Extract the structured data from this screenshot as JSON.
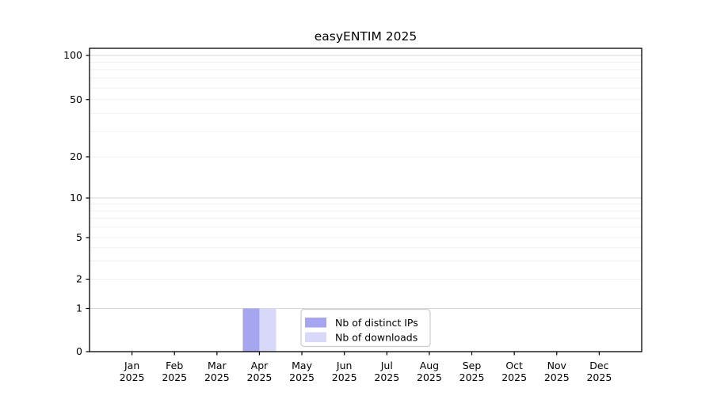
{
  "chart_data": {
    "type": "bar",
    "title": "easyENTIM 2025",
    "x_categories": [
      "Jan",
      "Feb",
      "Mar",
      "Apr",
      "May",
      "Jun",
      "Jul",
      "Aug",
      "Sep",
      "Oct",
      "Nov",
      "Dec"
    ],
    "x_year_label": "2025",
    "y_ticks": [
      0,
      1,
      2,
      5,
      10,
      20,
      50,
      100
    ],
    "y_scale": "symlog",
    "ylim": [
      0,
      115
    ],
    "grid": "on",
    "series": [
      {
        "name": "Nb of distinct IPs",
        "color": "#a5a5f0",
        "values": [
          0,
          0,
          0,
          1,
          0,
          0,
          0,
          0,
          0,
          0,
          0,
          0
        ]
      },
      {
        "name": "Nb of downloads",
        "color": "#d8d8f8",
        "values": [
          0,
          0,
          0,
          1,
          0,
          0,
          0,
          0,
          0,
          0,
          0,
          0
        ]
      }
    ],
    "legend": {
      "position": "lower center",
      "labels": [
        "Nb of distinct IPs",
        "Nb of downloads"
      ]
    }
  },
  "colors": {
    "background": "#ffffff",
    "spine": "#000000",
    "grid_major": "#d7d7d7",
    "grid_minor": "#f0f0f0",
    "legend_border": "#cccccc",
    "legend_background": "#ffffff",
    "text": "#000000"
  }
}
